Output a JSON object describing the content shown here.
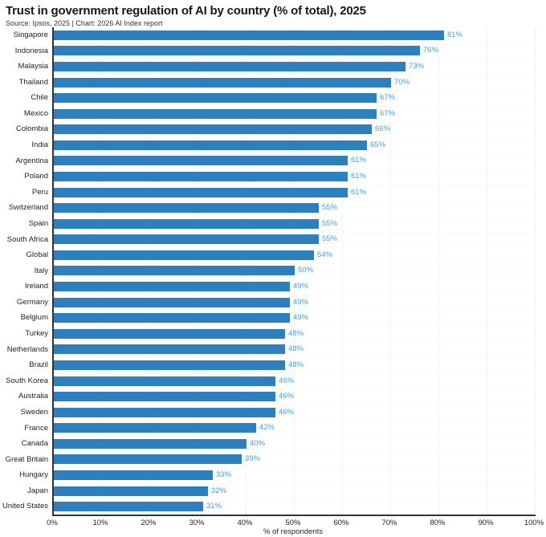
{
  "chart_data": {
    "type": "bar",
    "orientation": "horizontal",
    "title": "Trust in government regulation of AI by country (% of total), 2025",
    "subtitle": "Source: Ipsos, 2025 | Chart: 2026 AI Index report",
    "xlabel": "% of respondents",
    "xlim": [
      0,
      100
    ],
    "x_tick_labels": [
      "0%",
      "10%",
      "20%",
      "30%",
      "40%",
      "50%",
      "60%",
      "70%",
      "80%",
      "90%",
      "100%"
    ],
    "grid": true,
    "legend": false,
    "categories": [
      "Singapore",
      "Indonesia",
      "Malaysia",
      "Thailand",
      "Chile",
      "Mexico",
      "Colombia",
      "India",
      "Argentina",
      "Poland",
      "Peru",
      "Switzerland",
      "Spain",
      "South Africa",
      "Global",
      "Italy",
      "Ireland",
      "Germany",
      "Belgium",
      "Turkey",
      "Netherlands",
      "Brazil",
      "South Korea",
      "Australia",
      "Sweden",
      "France",
      "Canada",
      "Great Britain",
      "Hungary",
      "Japan",
      "United States"
    ],
    "values": [
      81,
      76,
      73,
      70,
      67,
      67,
      66,
      65,
      61,
      61,
      61,
      55,
      55,
      55,
      54,
      50,
      49,
      49,
      49,
      48,
      48,
      48,
      46,
      46,
      46,
      42,
      40,
      39,
      33,
      32,
      31
    ],
    "value_labels": [
      "81%",
      "76%",
      "73%",
      "70%",
      "67%",
      "67%",
      "66%",
      "65%",
      "61%",
      "61%",
      "61%",
      "55%",
      "55%",
      "55%",
      "54%",
      "50%",
      "49%",
      "49%",
      "49%",
      "48%",
      "48%",
      "48%",
      "46%",
      "46%",
      "46%",
      "42%",
      "40%",
      "39%",
      "33%",
      "32%",
      "31%"
    ],
    "colors": {
      "bar": "#2d7fbe",
      "value_label": "#4d9dd2",
      "axis_line": "#33333b",
      "gridline": "#f1f1f1",
      "text": "#232329"
    }
  }
}
